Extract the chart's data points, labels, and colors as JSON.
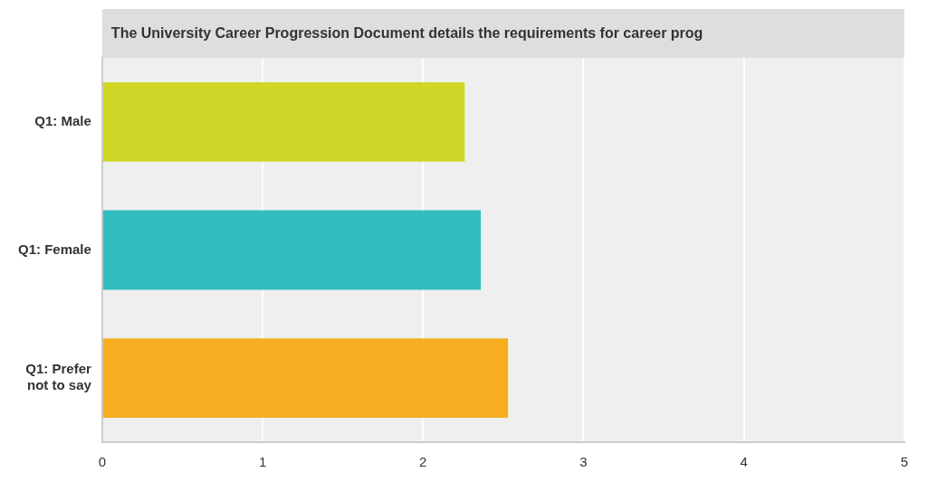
{
  "chart_data": {
    "type": "bar",
    "orientation": "horizontal",
    "title": "The University Career Progression Document details the requirements for career prog",
    "categories": [
      "Q1: Male",
      "Q1: Female",
      "Q1: Prefer not to say"
    ],
    "values": [
      2.26,
      2.36,
      2.53
    ],
    "colors": [
      "#cfd628",
      "#34bdc0",
      "#f6ae20"
    ],
    "xlim": [
      0,
      5
    ],
    "xticks": [
      0,
      1,
      2,
      3,
      4,
      5
    ],
    "grid": "x",
    "legend": false
  }
}
